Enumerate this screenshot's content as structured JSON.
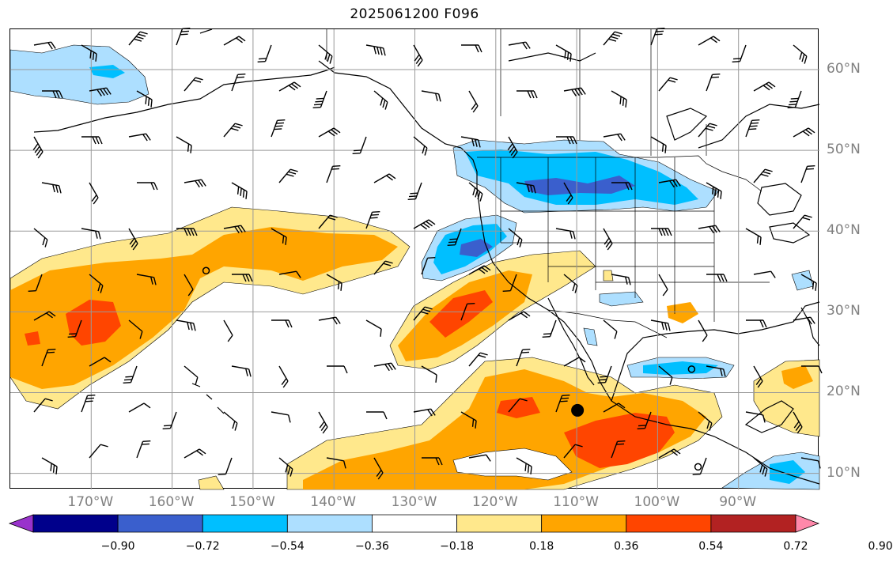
{
  "title": "2025061200 F096",
  "lat_labels": [
    {
      "text": "60°N",
      "lat": 60
    },
    {
      "text": "50°N",
      "lat": 50
    },
    {
      "text": "40°N",
      "lat": 40
    },
    {
      "text": "30°N",
      "lat": 30
    },
    {
      "text": "20°N",
      "lat": 20
    },
    {
      "text": "10°N",
      "lat": 10
    }
  ],
  "lon_labels": [
    {
      "text": "170°W",
      "lon": -170
    },
    {
      "text": "160°W",
      "lon": -160
    },
    {
      "text": "150°W",
      "lon": -150
    },
    {
      "text": "140°W",
      "lon": -140
    },
    {
      "text": "130°W",
      "lon": -130
    },
    {
      "text": "120°W",
      "lon": -120
    },
    {
      "text": "110°W",
      "lon": -110
    },
    {
      "text": "100°W",
      "lon": -100
    },
    {
      "text": "90°W",
      "lon": -90
    }
  ],
  "colorbar": {
    "extend": "both",
    "colors": [
      "#9932CC",
      "#00008B",
      "#3A5FCD",
      "#00BFFF",
      "#ADDFFF",
      "#FFFFFF",
      "#FFE88C",
      "#FFA500",
      "#FF4500",
      "#B22222",
      "#FF88AA"
    ],
    "ticks": [
      "−0.90",
      "−0.72",
      "−0.54",
      "−0.36",
      "−0.18",
      "0.18",
      "0.36",
      "0.54",
      "0.72",
      "0.90"
    ]
  },
  "map_data": {
    "lon_range": [
      -180,
      -80
    ],
    "lat_range": [
      8,
      65
    ],
    "gridlines": true,
    "marker": {
      "lon": -109.9,
      "lat": 17.8
    },
    "open_circles": [
      {
        "lon": -155.8,
        "lat": 35.1
      },
      {
        "lon": -95.8,
        "lat": 22.9
      },
      {
        "lon": -95,
        "lat": 10.8
      }
    ]
  }
}
